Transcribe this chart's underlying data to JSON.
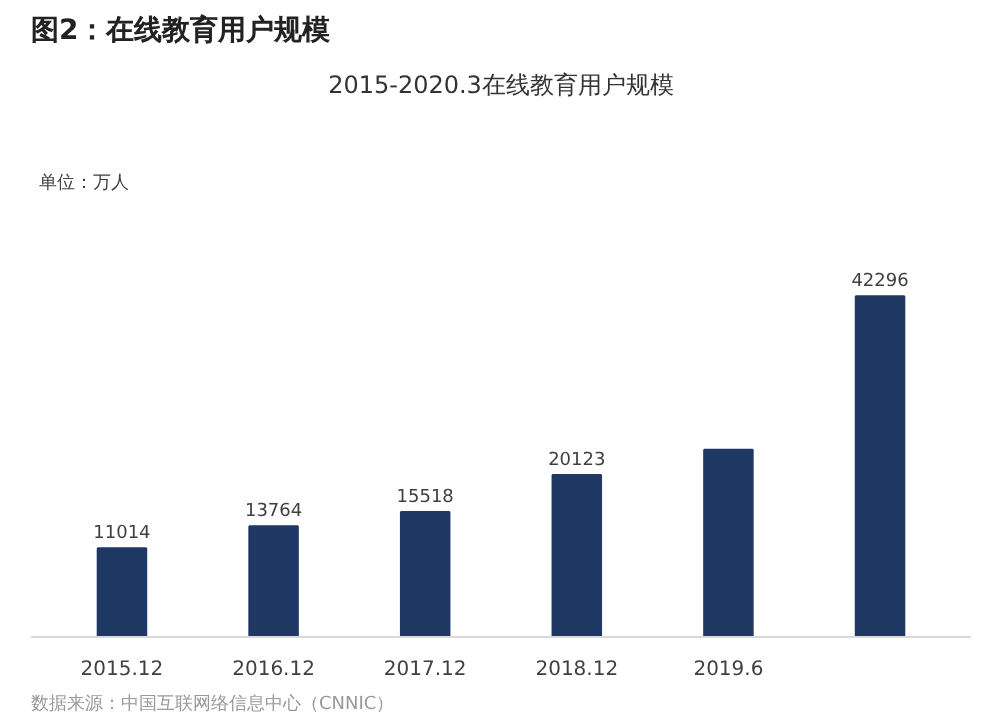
{
  "chart_data": {
    "type": "bar",
    "title": "图2：在线教育用户规模",
    "subtitle": "2015-2020.3在线教育用户规模",
    "categories": [
      "2015.12",
      "2016.12",
      "2017.12",
      "2018.12",
      "2019.6",
      null
    ],
    "values": [
      11014,
      13764,
      15518,
      20123,
      23246,
      42296
    ],
    "value_labels": [
      "11014",
      "13764",
      "15518",
      "20123",
      null,
      "42296"
    ],
    "color": "#1f3864",
    "annotations": [
      "单位：万人",
      "数据来源：中国互联网络信息中心（CNNIC）"
    ]
  }
}
